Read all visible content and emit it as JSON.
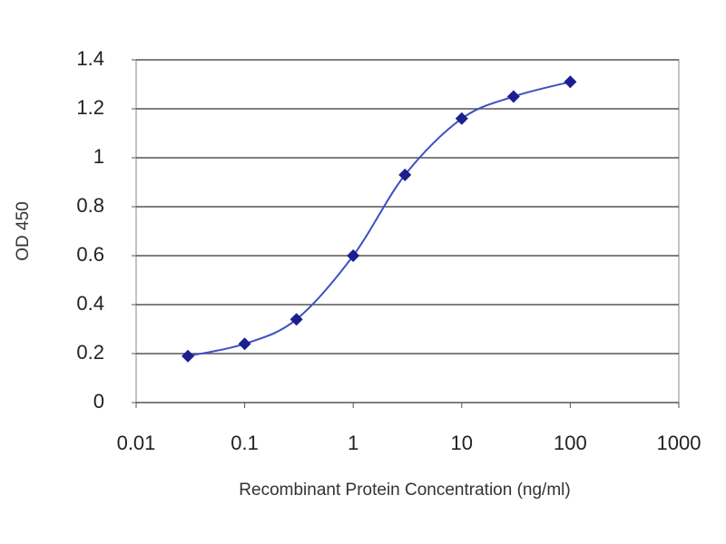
{
  "chart_data": {
    "type": "line",
    "x_label": "Recombinant Protein Concentration  (ng/ml)",
    "y_label": "OD 450",
    "x_scale": "log",
    "x": [
      0.03,
      0.1,
      0.3,
      1,
      3,
      10,
      30,
      100
    ],
    "series": [
      {
        "name": null,
        "color": "#1b1f8f",
        "line_color": "#3d4fc4",
        "marker": "diamond",
        "values": [
          0.19,
          0.24,
          0.34,
          0.6,
          0.93,
          1.16,
          1.25,
          1.31
        ]
      }
    ],
    "xlim": [
      0.01,
      1000
    ],
    "xticks": [
      0.01,
      0.1,
      1,
      10,
      100,
      1000
    ],
    "ylim": [
      0,
      1.4
    ],
    "yticks": [
      0,
      0.2,
      0.4,
      0.6,
      0.8,
      1,
      1.2,
      1.4
    ],
    "grid": true
  }
}
